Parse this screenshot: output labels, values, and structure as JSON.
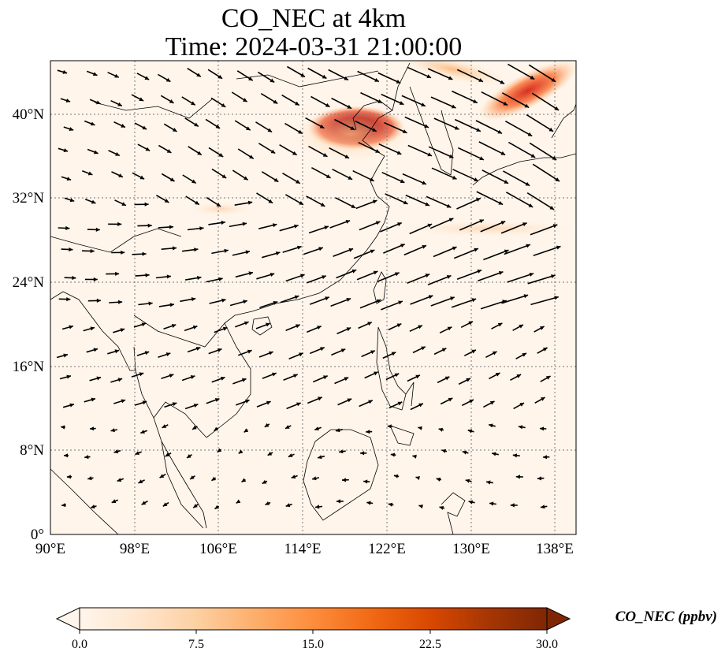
{
  "title": {
    "line1": "CO_NEC at 4km",
    "line2": "Time: 2024-03-31 21:00:00"
  },
  "map": {
    "lon_range": [
      90,
      140
    ],
    "lat_range": [
      0,
      45
    ],
    "lon_ticks": [
      "90°E",
      "98°E",
      "106°E",
      "114°E",
      "122°E",
      "130°E",
      "138°E"
    ],
    "lat_ticks": [
      "0°",
      "8°N",
      "16°N",
      "24°N",
      "32°N",
      "40°N"
    ],
    "gridline_style": "dotted",
    "colors": {
      "background": "#fff5eb",
      "coastline": "#000000",
      "vector": "#000000"
    }
  },
  "colorbar": {
    "title": "CO_NEC (ppbv)",
    "ticks": [
      "0.0",
      "7.5",
      "15.0",
      "22.5",
      "30.0"
    ],
    "range": [
      0,
      30
    ],
    "extend": "both",
    "colormap": [
      "#fff5eb",
      "#fee6ce",
      "#fdd0a2",
      "#fdae6b",
      "#fd8d3c",
      "#f16913",
      "#d94801",
      "#a63603",
      "#7f2704"
    ]
  }
}
